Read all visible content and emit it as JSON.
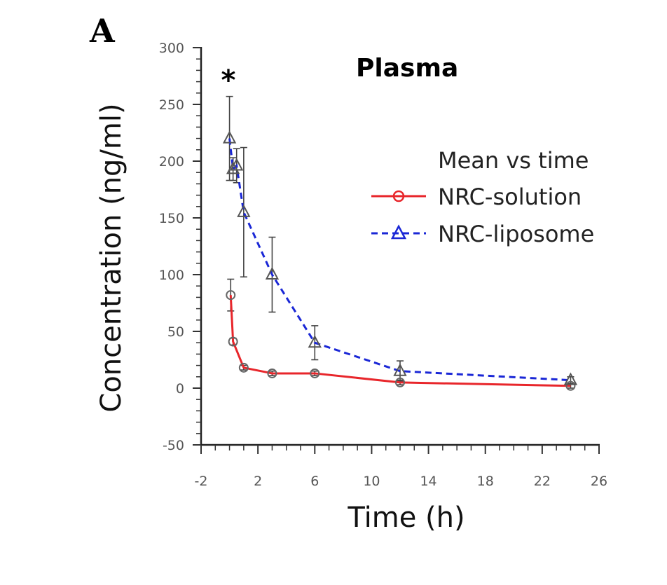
{
  "panel_label": "A",
  "chart_data": {
    "type": "line",
    "title": "Plasma",
    "xlabel": "Time (h)",
    "ylabel": "Concentration (ng/ml)",
    "xlim": [
      -2,
      26
    ],
    "ylim": [
      -50,
      300
    ],
    "x_ticks": [
      -2,
      2,
      6,
      10,
      14,
      18,
      22,
      26
    ],
    "y_ticks": [
      -50,
      0,
      50,
      100,
      150,
      200,
      250,
      300
    ],
    "x_minor_step": 1,
    "y_minor_step": 10,
    "grid": false,
    "legend": {
      "title": "Mean vs time",
      "position": "top-right"
    },
    "annotations": [
      {
        "text": "*",
        "x": 0,
        "y": 272
      }
    ],
    "series": [
      {
        "name": "NRC-solution",
        "color": "#e8262b",
        "marker": "circle",
        "line_style": "solid",
        "x": [
          0.083,
          0.25,
          1,
          3,
          6,
          12,
          24
        ],
        "y": [
          82,
          41,
          18,
          13,
          13,
          5,
          2
        ],
        "error": [
          14,
          3,
          2,
          2,
          2,
          2,
          2
        ]
      },
      {
        "name": "NRC-liposome",
        "color": "#1a27d6",
        "marker": "triangle",
        "line_style": "dashed",
        "x": [
          0,
          0.25,
          0.5,
          1,
          3,
          6,
          12,
          24
        ],
        "y": [
          220,
          193,
          196,
          155,
          100,
          40,
          15,
          7
        ],
        "error": [
          37,
          10,
          15,
          57,
          33,
          15,
          9,
          3
        ]
      }
    ]
  }
}
